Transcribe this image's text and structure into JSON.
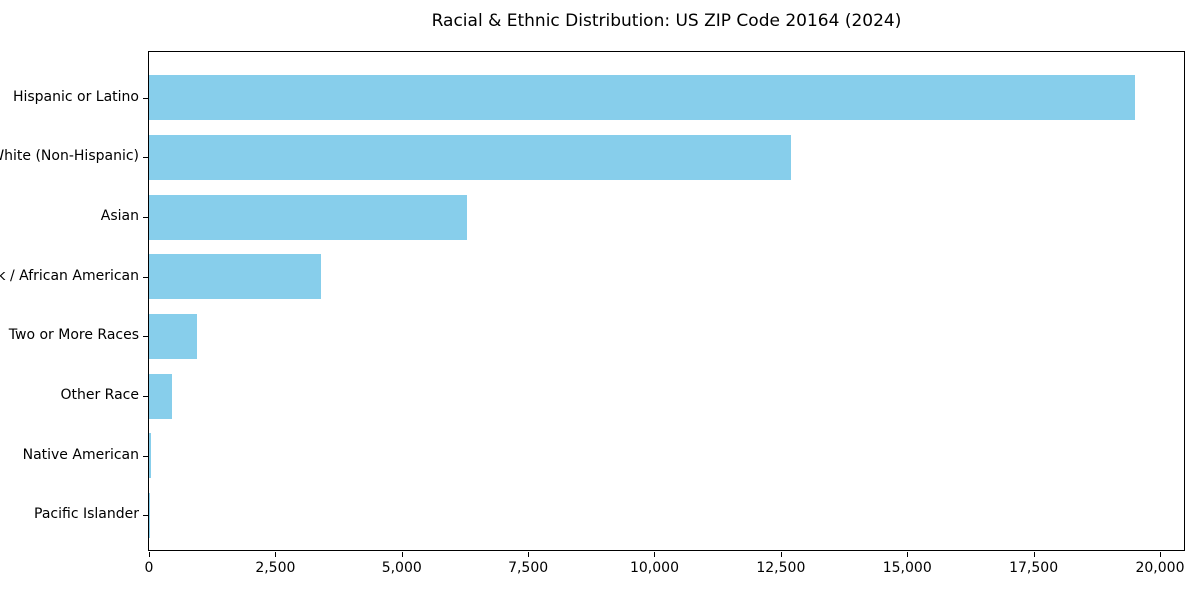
{
  "figure": {
    "background": "#ffffff",
    "axis_color": "#000000",
    "text_color": "#000000"
  },
  "chart_data": {
    "type": "bar",
    "orientation": "horizontal",
    "title": "Racial & Ethnic Distribution: US ZIP Code 20164 (2024)",
    "xlabel": "",
    "ylabel": "",
    "categories": [
      "Hispanic or Latino",
      "White (Non-Hispanic)",
      "Asian",
      "Black / African American",
      "Two or More Races",
      "Other Race",
      "Native American",
      "Pacific Islander"
    ],
    "values": [
      19500,
      12700,
      6300,
      3400,
      950,
      450,
      40,
      10
    ],
    "bar_color": "#87CEEB",
    "xlim": [
      0,
      20475
    ],
    "x_ticks": [
      0,
      2500,
      5000,
      7500,
      10000,
      12500,
      15000,
      17500,
      20000
    ],
    "x_tick_labels": [
      "0",
      "2,500",
      "5,000",
      "7,500",
      "10,000",
      "12,500",
      "15,000",
      "17,500",
      "20,000"
    ],
    "grid": false,
    "legend": null
  }
}
